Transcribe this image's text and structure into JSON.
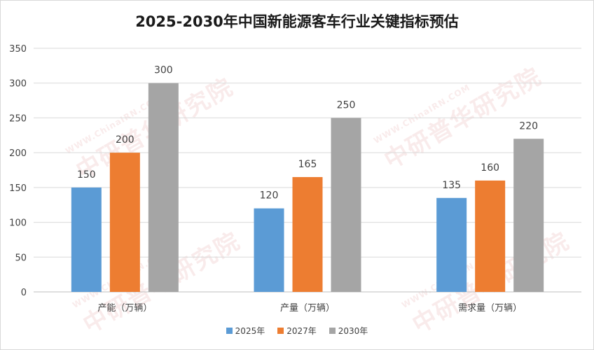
{
  "chart_data": {
    "type": "bar",
    "title": "2025-2030年中国新能源客车行业关键指标预估",
    "categories": [
      "产能（万辆）",
      "产量（万辆）",
      "需求量（万辆）"
    ],
    "series": [
      {
        "name": "2025年",
        "color": "#5b9bd5",
        "values": [
          150,
          120,
          135
        ]
      },
      {
        "name": "2027年",
        "color": "#ed7d31",
        "values": [
          200,
          165,
          160
        ]
      },
      {
        "name": "2030年",
        "color": "#a5a5a5",
        "values": [
          300,
          250,
          220
        ]
      }
    ],
    "xlabel": "",
    "ylabel": "",
    "ylim": [
      0,
      350
    ],
    "yticks": [
      0,
      50,
      100,
      150,
      200,
      250,
      300,
      350
    ],
    "grid": true,
    "legend_position": "bottom"
  },
  "watermark": {
    "brand": "中研普华研究院",
    "url": "WWW.ChinaIRN.COM",
    "logo": "CIRN"
  }
}
